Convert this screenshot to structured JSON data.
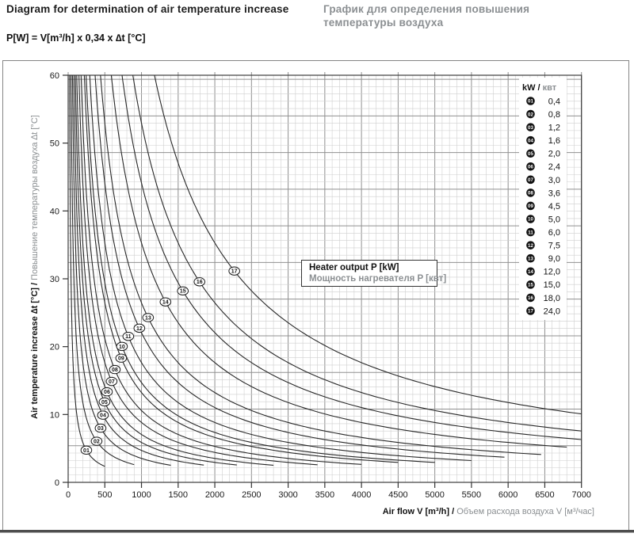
{
  "header": {
    "title_en": "Diagram for determination of air temperature increase",
    "title_ru": "График для определения повышения температуры воздуха",
    "formula": "P[W] = V[m³/h] x 0,34 x ∆t [°C]"
  },
  "chart_data": {
    "type": "line",
    "relationship": "∆t[°C] = P[kW] × 1000 / (0.34 × V[m³/h])",
    "factor": 0.34,
    "inner_box": {
      "line_en": "Heater output  P [kW]",
      "line_ru": "Мощность нагревателя  P [квт]"
    },
    "x_axis": {
      "label_en": "Air flow V [m³/h]",
      "separator": " / ",
      "label_ru": "Объем расхода воздуха V [м³/час]",
      "min": 0,
      "max": 7000,
      "tick_step": 500,
      "ticks": [
        "0",
        "500",
        "1000",
        "1500",
        "2000",
        "2500",
        "3000",
        "3500",
        "4000",
        "4500",
        "5000",
        "5500",
        "6000",
        "6500",
        "7000"
      ]
    },
    "y_axis": {
      "label_en": "Air temperature increase ∆t [°C]",
      "separator": " / ",
      "label_ru": "Повышение температуры воздуха ∆t [°C]",
      "min": 0,
      "max": 60,
      "tick_step": 10,
      "ticks": [
        "0",
        "10",
        "20",
        "30",
        "40",
        "50",
        "60"
      ]
    },
    "legend": {
      "header_en": "kW",
      "header_separator": " / ",
      "header_ru": "квт"
    },
    "grid": true,
    "series": [
      {
        "id": "01",
        "kw": 0.4,
        "kw_label": "0,4",
        "v_end": 500,
        "label_v": 248
      },
      {
        "id": "02",
        "kw": 0.8,
        "kw_label": "0,8",
        "v_end": 900,
        "label_v": 388
      },
      {
        "id": "03",
        "kw": 1.2,
        "kw_label": "1,2",
        "v_end": 1400,
        "label_v": 442
      },
      {
        "id": "04",
        "kw": 1.6,
        "kw_label": "1,6",
        "v_end": 1850,
        "label_v": 475
      },
      {
        "id": "05",
        "kw": 2.0,
        "kw_label": "2,0",
        "v_end": 2300,
        "label_v": 496
      },
      {
        "id": "06",
        "kw": 2.4,
        "kw_label": "2,4",
        "v_end": 2800,
        "label_v": 529
      },
      {
        "id": "07",
        "kw": 3.0,
        "kw_label": "3,0",
        "v_end": 3400,
        "label_v": 593
      },
      {
        "id": "08",
        "kw": 3.6,
        "kw_label": "3,6",
        "v_end": 4000,
        "label_v": 637
      },
      {
        "id": "09",
        "kw": 4.5,
        "kw_label": "4,5",
        "v_end": 4500,
        "label_v": 723
      },
      {
        "id": "10",
        "kw": 5.0,
        "kw_label": "5,0",
        "v_end": 5000,
        "label_v": 734
      },
      {
        "id": "11",
        "kw": 6.0,
        "kw_label": "6,0",
        "v_end": 5500,
        "label_v": 820
      },
      {
        "id": "12",
        "kw": 7.5,
        "kw_label": "7,5",
        "v_end": 5950,
        "label_v": 971
      },
      {
        "id": "13",
        "kw": 9.0,
        "kw_label": "9,0",
        "v_end": 6450,
        "label_v": 1090
      },
      {
        "id": "14",
        "kw": 12.0,
        "kw_label": "12,0",
        "v_end": 6800,
        "label_v": 1327
      },
      {
        "id": "15",
        "kw": 15.0,
        "kw_label": "15,0",
        "v_end": 7000,
        "label_v": 1564
      },
      {
        "id": "16",
        "kw": 18.0,
        "kw_label": "18,0",
        "v_end": 7000,
        "label_v": 1791
      },
      {
        "id": "17",
        "kw": 24.0,
        "kw_label": "24,0",
        "v_end": 7000,
        "label_v": 2266
      }
    ]
  },
  "colors": {
    "text_primary": "#1c1c1c",
    "text_secondary": "#8b8f92",
    "curve": "#282828",
    "grid_minor": "#cfcfcf",
    "grid_major": "#909090",
    "plot_border": "#3c3c3c",
    "frame": "#858585",
    "bottom_bar": "#4e4e4e"
  }
}
